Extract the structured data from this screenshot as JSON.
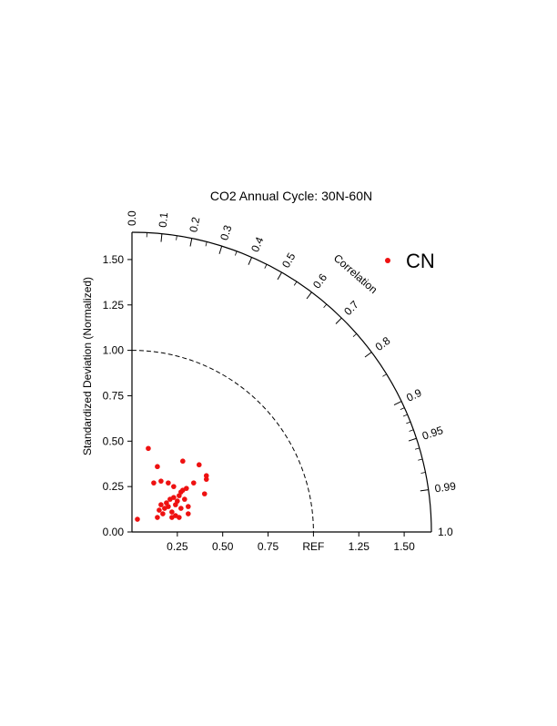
{
  "chart_data": {
    "type": "scatter",
    "diagram": "taylor",
    "title": "CO2 Annual Cycle:  30N-60N",
    "ylabel": "Standardized Deviation (Normalized)",
    "xlabel": "",
    "x_ticks": [
      "0.25",
      "0.50",
      "0.75",
      "REF",
      "1.25",
      "1.50"
    ],
    "x_tick_values": [
      0.25,
      0.5,
      0.75,
      1.0,
      1.25,
      1.5
    ],
    "y_ticks": [
      "0.00",
      "0.25",
      "0.50",
      "0.75",
      "1.00",
      "1.25",
      "1.50"
    ],
    "y_tick_values": [
      0,
      0.25,
      0.5,
      0.75,
      1.0,
      1.25,
      1.5
    ],
    "std_max": 1.65,
    "reference_std": 1.0,
    "correlation_label": "Correlation",
    "correlation_ticks": [
      {
        "label": "0.0",
        "value": 0.0
      },
      {
        "label": "0.1",
        "value": 0.1
      },
      {
        "label": "0.2",
        "value": 0.2
      },
      {
        "label": "0.3",
        "value": 0.3
      },
      {
        "label": "0.4",
        "value": 0.4
      },
      {
        "label": "0.5",
        "value": 0.5
      },
      {
        "label": "0.6",
        "value": 0.6
      },
      {
        "label": "0.7",
        "value": 0.7
      },
      {
        "label": "0.8",
        "value": 0.8
      },
      {
        "label": "0.9",
        "value": 0.9
      },
      {
        "label": "0.95",
        "value": 0.95
      },
      {
        "label": "0.99",
        "value": 0.99
      },
      {
        "label": "1.0",
        "value": 1.0
      }
    ],
    "legend": {
      "placement": "top-right",
      "entries": [
        {
          "name": "CN",
          "color": "#ee1111"
        }
      ]
    },
    "series": [
      {
        "name": "CN",
        "color": "#ee1111",
        "points": [
          {
            "x": 0.03,
            "y": 0.07
          },
          {
            "x": 0.09,
            "y": 0.46
          },
          {
            "x": 0.12,
            "y": 0.27
          },
          {
            "x": 0.14,
            "y": 0.36
          },
          {
            "x": 0.14,
            "y": 0.08
          },
          {
            "x": 0.15,
            "y": 0.12
          },
          {
            "x": 0.16,
            "y": 0.15
          },
          {
            "x": 0.16,
            "y": 0.28
          },
          {
            "x": 0.17,
            "y": 0.1
          },
          {
            "x": 0.18,
            "y": 0.13
          },
          {
            "x": 0.19,
            "y": 0.16
          },
          {
            "x": 0.2,
            "y": 0.27
          },
          {
            "x": 0.2,
            "y": 0.14
          },
          {
            "x": 0.21,
            "y": 0.18
          },
          {
            "x": 0.22,
            "y": 0.08
          },
          {
            "x": 0.22,
            "y": 0.11
          },
          {
            "x": 0.23,
            "y": 0.19
          },
          {
            "x": 0.23,
            "y": 0.25
          },
          {
            "x": 0.24,
            "y": 0.15
          },
          {
            "x": 0.24,
            "y": 0.09
          },
          {
            "x": 0.25,
            "y": 0.17
          },
          {
            "x": 0.26,
            "y": 0.2
          },
          {
            "x": 0.26,
            "y": 0.08
          },
          {
            "x": 0.27,
            "y": 0.22
          },
          {
            "x": 0.27,
            "y": 0.13
          },
          {
            "x": 0.28,
            "y": 0.39
          },
          {
            "x": 0.28,
            "y": 0.23
          },
          {
            "x": 0.29,
            "y": 0.18
          },
          {
            "x": 0.3,
            "y": 0.24
          },
          {
            "x": 0.31,
            "y": 0.14
          },
          {
            "x": 0.31,
            "y": 0.1
          },
          {
            "x": 0.34,
            "y": 0.27
          },
          {
            "x": 0.37,
            "y": 0.37
          },
          {
            "x": 0.4,
            "y": 0.21
          },
          {
            "x": 0.41,
            "y": 0.29
          },
          {
            "x": 0.41,
            "y": 0.31
          }
        ]
      }
    ]
  }
}
